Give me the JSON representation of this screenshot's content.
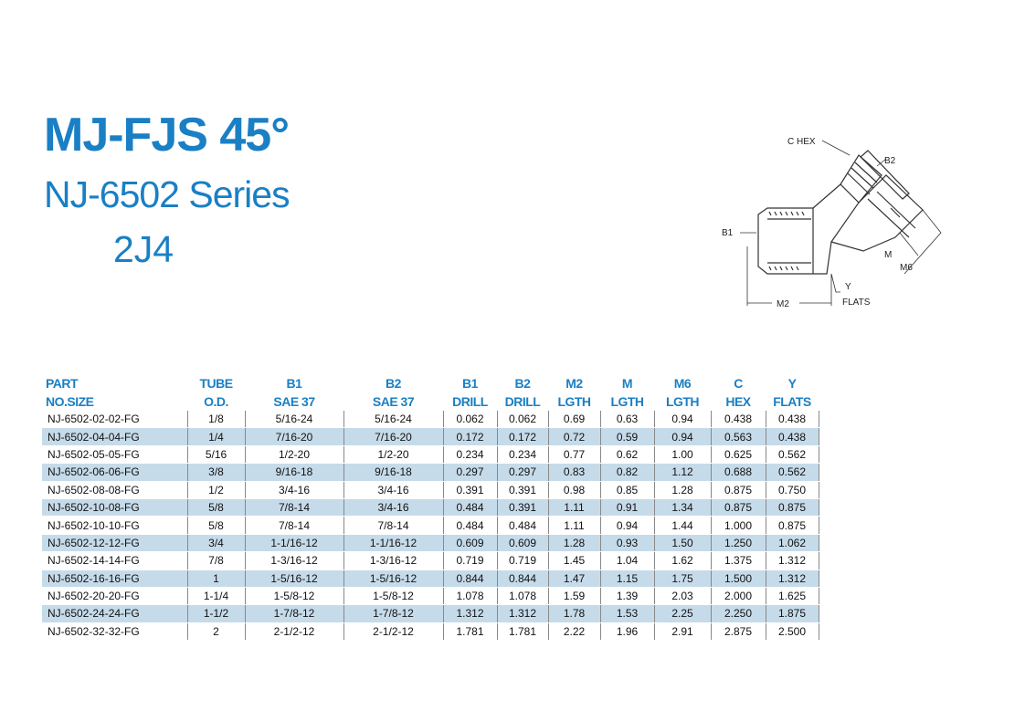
{
  "header": {
    "title": "MJ-FJS 45°",
    "subtitle": "NJ-6502 Series",
    "code": "2J4"
  },
  "diagram": {
    "labels": {
      "c_hex": "C HEX",
      "b2": "B2",
      "b1": "B1",
      "m": "M",
      "m6": "M6",
      "m2": "M2",
      "y": "Y",
      "flats": "FLATS"
    }
  },
  "table": {
    "columns": [
      [
        "PART",
        "NO.SIZE"
      ],
      [
        "TUBE",
        "O.D."
      ],
      [
        "B1",
        "SAE 37"
      ],
      [
        "B2",
        "SAE 37"
      ],
      [
        "B1",
        "DRILL"
      ],
      [
        "B2",
        "DRILL"
      ],
      [
        "M2",
        "LGTH"
      ],
      [
        "M",
        "LGTH"
      ],
      [
        "M6",
        "LGTH"
      ],
      [
        "C",
        "HEX"
      ],
      [
        "Y",
        "FLATS"
      ]
    ],
    "rows": [
      [
        "NJ-6502-02-02-FG",
        "1/8",
        "5/16-24",
        "5/16-24",
        "0.062",
        "0.062",
        "0.69",
        "0.63",
        "0.94",
        "0.438",
        "0.438"
      ],
      [
        "NJ-6502-04-04-FG",
        "1/4",
        "7/16-20",
        "7/16-20",
        "0.172",
        "0.172",
        "0.72",
        "0.59",
        "0.94",
        "0.563",
        "0.438"
      ],
      [
        "NJ-6502-05-05-FG",
        "5/16",
        "1/2-20",
        "1/2-20",
        "0.234",
        "0.234",
        "0.77",
        "0.62",
        "1.00",
        "0.625",
        "0.562"
      ],
      [
        "NJ-6502-06-06-FG",
        "3/8",
        "9/16-18",
        "9/16-18",
        "0.297",
        "0.297",
        "0.83",
        "0.82",
        "1.12",
        "0.688",
        "0.562"
      ],
      [
        "NJ-6502-08-08-FG",
        "1/2",
        "3/4-16",
        "3/4-16",
        "0.391",
        "0.391",
        "0.98",
        "0.85",
        "1.28",
        "0.875",
        "0.750"
      ],
      [
        "NJ-6502-10-08-FG",
        "5/8",
        "7/8-14",
        "3/4-16",
        "0.484",
        "0.391",
        "1.11",
        "0.91",
        "1.34",
        "0.875",
        "0.875"
      ],
      [
        "NJ-6502-10-10-FG",
        "5/8",
        "7/8-14",
        "7/8-14",
        "0.484",
        "0.484",
        "1.11",
        "0.94",
        "1.44",
        "1.000",
        "0.875"
      ],
      [
        "NJ-6502-12-12-FG",
        "3/4",
        "1-1/16-12",
        "1-1/16-12",
        "0.609",
        "0.609",
        "1.28",
        "0.93",
        "1.50",
        "1.250",
        "1.062"
      ],
      [
        "NJ-6502-14-14-FG",
        "7/8",
        "1-3/16-12",
        "1-3/16-12",
        "0.719",
        "0.719",
        "1.45",
        "1.04",
        "1.62",
        "1.375",
        "1.312"
      ],
      [
        "NJ-6502-16-16-FG",
        "1",
        "1-5/16-12",
        "1-5/16-12",
        "0.844",
        "0.844",
        "1.47",
        "1.15",
        "1.75",
        "1.500",
        "1.312"
      ],
      [
        "NJ-6502-20-20-FG",
        "1-1/4",
        "1-5/8-12",
        "1-5/8-12",
        "1.078",
        "1.078",
        "1.59",
        "1.39",
        "2.03",
        "2.000",
        "1.625"
      ],
      [
        "NJ-6502-24-24-FG",
        "1-1/2",
        "1-7/8-12",
        "1-7/8-12",
        "1.312",
        "1.312",
        "1.78",
        "1.53",
        "2.25",
        "2.250",
        "1.875"
      ],
      [
        "NJ-6502-32-32-FG",
        "2",
        "2-1/2-12",
        "2-1/2-12",
        "1.781",
        "1.781",
        "2.22",
        "1.96",
        "2.91",
        "2.875",
        "2.500"
      ]
    ]
  }
}
